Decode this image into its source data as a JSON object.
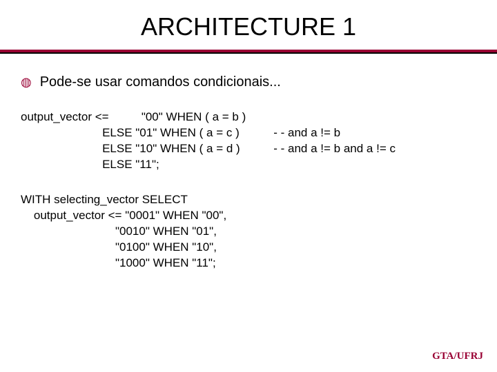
{
  "title": "ARCHITECTURE 1",
  "divider": {
    "top_color": "#990033",
    "bottom_color": "#000000"
  },
  "bullet": {
    "glyph": "◍",
    "color": "#990033",
    "text": "Pode-se usar comandos condicionais..."
  },
  "code1": {
    "left": "output_vector <=          \"00\" WHEN ( a = b )\n                         ELSE \"01\" WHEN ( a = c )\n                         ELSE \"10\" WHEN ( a = d )\n                         ELSE \"11\";",
    "right": "\n- - and a != b\n- - and a != b and a != c\n"
  },
  "code2": "WITH selecting_vector SELECT\n    output_vector <= \"0001\" WHEN \"00\",\n                             \"0010\" WHEN \"01\",\n                             \"0100\" WHEN \"10\",\n                             \"1000\" WHEN \"11\";",
  "footer": "GTA/UFRJ",
  "typography": {
    "title_fontsize": 36,
    "body_fontsize": 20,
    "code_fontsize": 17,
    "footer_fontsize": 15,
    "title_color": "#000000",
    "body_color": "#000000",
    "footer_color": "#990033"
  },
  "background_color": "#ffffff"
}
